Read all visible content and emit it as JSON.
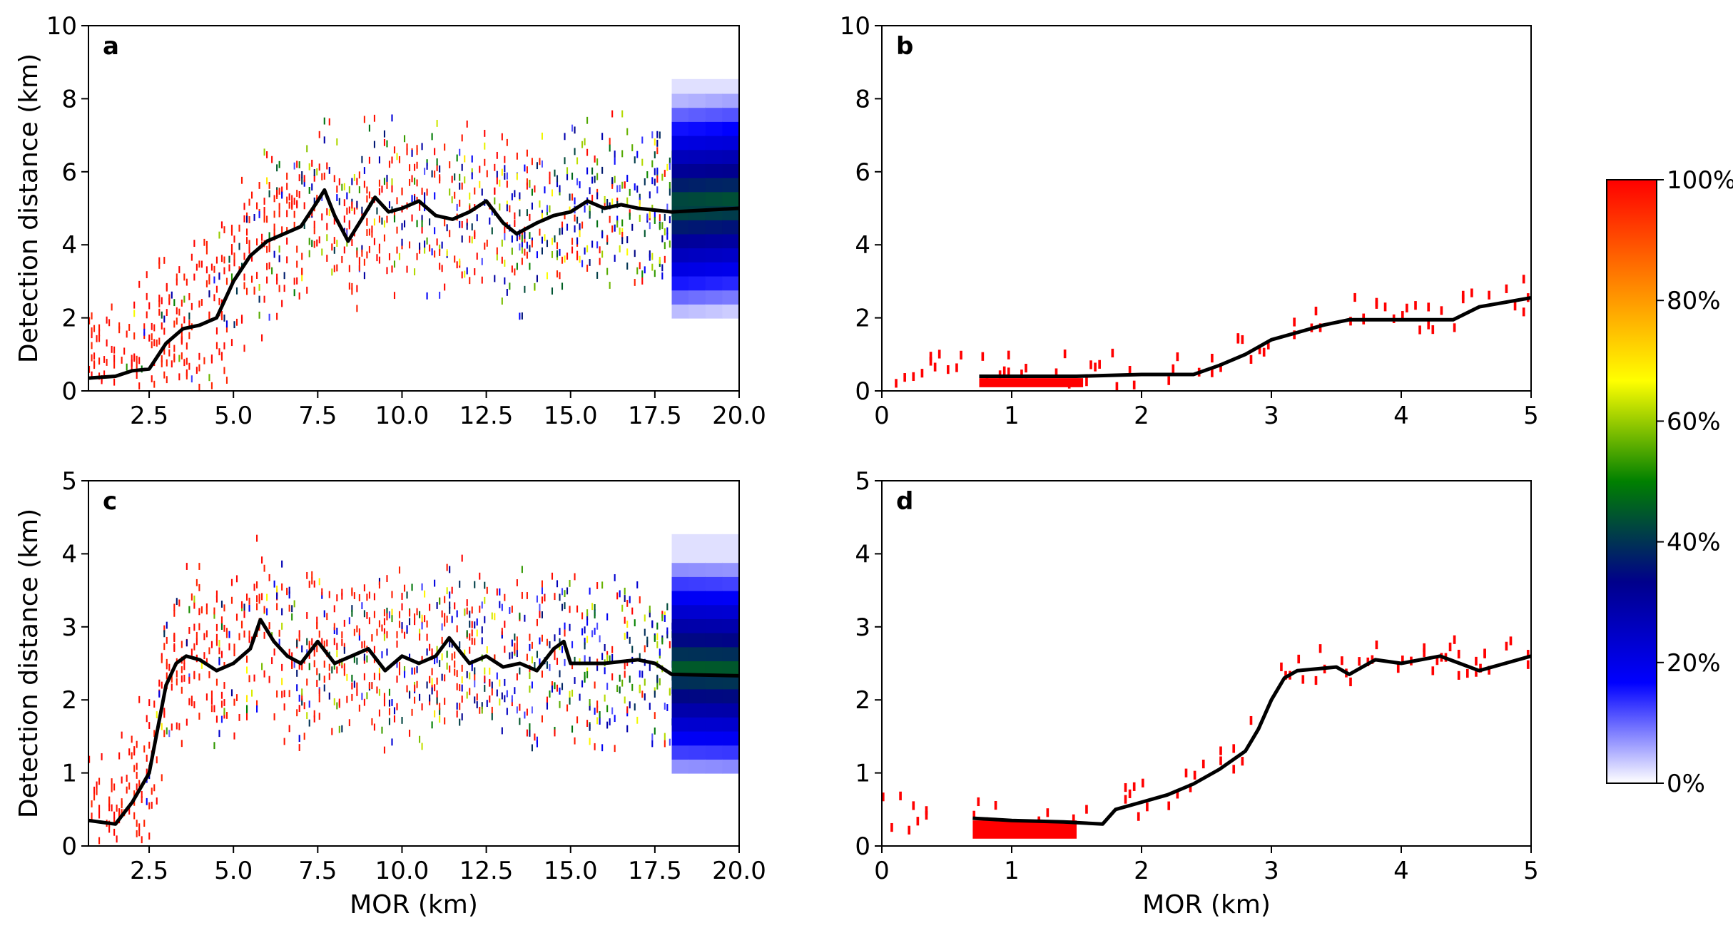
{
  "colorbar": {
    "stops": [
      "#ffffff",
      "#0000ff",
      "#00008b",
      "#008000",
      "#ffff00",
      "#ff8000",
      "#ff0000"
    ],
    "ticks": [
      {
        "value": 0,
        "label": "0%"
      },
      {
        "value": 20,
        "label": "20%"
      },
      {
        "value": 40,
        "label": "40%"
      },
      {
        "value": 60,
        "label": "60%"
      },
      {
        "value": 80,
        "label": "80%"
      },
      {
        "value": 100,
        "label": "100%"
      }
    ]
  },
  "chart_data": [
    {
      "panel": "a",
      "type": "heatmap",
      "xlabel": "",
      "ylabel": "Detection distance (km)",
      "xlim": [
        0.7,
        20.0
      ],
      "ylim": [
        0,
        10
      ],
      "xticks": [
        {
          "v": 2.5,
          "t": "2.5"
        },
        {
          "v": 5.0,
          "t": "5.0"
        },
        {
          "v": 7.5,
          "t": "7.5"
        },
        {
          "v": 10.0,
          "t": "10.0"
        },
        {
          "v": 12.5,
          "t": "12.5"
        },
        {
          "v": 15.0,
          "t": "15.0"
        },
        {
          "v": 17.5,
          "t": "17.5"
        },
        {
          "v": 20.0,
          "t": "20.0"
        }
      ],
      "yticks": [
        {
          "v": 0,
          "t": "0"
        },
        {
          "v": 2,
          "t": "2"
        },
        {
          "v": 4,
          "t": "4"
        },
        {
          "v": 6,
          "t": "6"
        },
        {
          "v": 8,
          "t": "8"
        },
        {
          "v": 10,
          "t": "10"
        }
      ],
      "median_line": [
        [
          0.7,
          0.35
        ],
        [
          1.5,
          0.4
        ],
        [
          2.0,
          0.55
        ],
        [
          2.5,
          0.6
        ],
        [
          3.0,
          1.3
        ],
        [
          3.5,
          1.7
        ],
        [
          4.0,
          1.8
        ],
        [
          4.5,
          2.0
        ],
        [
          5.0,
          3.0
        ],
        [
          5.5,
          3.7
        ],
        [
          6.0,
          4.1
        ],
        [
          6.5,
          4.3
        ],
        [
          7.0,
          4.5
        ],
        [
          7.5,
          5.2
        ],
        [
          7.7,
          5.5
        ],
        [
          8.0,
          4.8
        ],
        [
          8.4,
          4.1
        ],
        [
          8.8,
          4.7
        ],
        [
          9.2,
          5.3
        ],
        [
          9.6,
          4.9
        ],
        [
          10.0,
          5.0
        ],
        [
          10.5,
          5.2
        ],
        [
          11.0,
          4.8
        ],
        [
          11.5,
          4.7
        ],
        [
          12.0,
          4.9
        ],
        [
          12.5,
          5.2
        ],
        [
          13.0,
          4.6
        ],
        [
          13.4,
          4.3
        ],
        [
          14.0,
          4.6
        ],
        [
          14.5,
          4.8
        ],
        [
          15.0,
          4.9
        ],
        [
          15.5,
          5.2
        ],
        [
          16.0,
          5.0
        ],
        [
          16.5,
          5.1
        ],
        [
          17.0,
          5.0
        ],
        [
          18.0,
          4.9
        ],
        [
          20.0,
          5.0
        ]
      ]
    },
    {
      "panel": "b",
      "type": "heatmap",
      "xlabel": "",
      "ylabel": "",
      "xlim": [
        0,
        5
      ],
      "ylim": [
        0,
        10
      ],
      "xticks": [
        {
          "v": 0,
          "t": "0"
        },
        {
          "v": 1,
          "t": "1"
        },
        {
          "v": 2,
          "t": "2"
        },
        {
          "v": 3,
          "t": "3"
        },
        {
          "v": 4,
          "t": "4"
        },
        {
          "v": 5,
          "t": "5"
        }
      ],
      "yticks": [
        {
          "v": 0,
          "t": "0"
        },
        {
          "v": 2,
          "t": "2"
        },
        {
          "v": 4,
          "t": "4"
        },
        {
          "v": 6,
          "t": "6"
        },
        {
          "v": 8,
          "t": "8"
        },
        {
          "v": 10,
          "t": "10"
        }
      ],
      "median_line": [
        [
          0.75,
          0.4
        ],
        [
          1.5,
          0.4
        ],
        [
          2.0,
          0.45
        ],
        [
          2.4,
          0.45
        ],
        [
          2.6,
          0.7
        ],
        [
          2.8,
          1.0
        ],
        [
          3.0,
          1.4
        ],
        [
          3.2,
          1.6
        ],
        [
          3.4,
          1.8
        ],
        [
          3.6,
          1.95
        ],
        [
          4.0,
          1.95
        ],
        [
          4.4,
          1.95
        ],
        [
          4.6,
          2.3
        ],
        [
          5.0,
          2.55
        ]
      ]
    },
    {
      "panel": "c",
      "type": "heatmap",
      "xlabel": "MOR (km)",
      "ylabel": "Detection distance (km)",
      "xlim": [
        0.7,
        20.0
      ],
      "ylim": [
        0,
        5
      ],
      "xticks": [
        {
          "v": 2.5,
          "t": "2.5"
        },
        {
          "v": 5.0,
          "t": "5.0"
        },
        {
          "v": 7.5,
          "t": "7.5"
        },
        {
          "v": 10.0,
          "t": "10.0"
        },
        {
          "v": 12.5,
          "t": "12.5"
        },
        {
          "v": 15.0,
          "t": "15.0"
        },
        {
          "v": 17.5,
          "t": "17.5"
        },
        {
          "v": 20.0,
          "t": "20.0"
        }
      ],
      "yticks": [
        {
          "v": 0,
          "t": "0"
        },
        {
          "v": 1,
          "t": "1"
        },
        {
          "v": 2,
          "t": "2"
        },
        {
          "v": 3,
          "t": "3"
        },
        {
          "v": 4,
          "t": "4"
        },
        {
          "v": 5,
          "t": "5"
        }
      ],
      "median_line": [
        [
          0.7,
          0.35
        ],
        [
          1.5,
          0.3
        ],
        [
          2.0,
          0.6
        ],
        [
          2.5,
          1.0
        ],
        [
          3.0,
          2.2
        ],
        [
          3.3,
          2.5
        ],
        [
          3.6,
          2.6
        ],
        [
          4.0,
          2.55
        ],
        [
          4.5,
          2.4
        ],
        [
          5.0,
          2.5
        ],
        [
          5.5,
          2.7
        ],
        [
          5.8,
          3.1
        ],
        [
          6.2,
          2.8
        ],
        [
          6.6,
          2.6
        ],
        [
          7.0,
          2.5
        ],
        [
          7.5,
          2.8
        ],
        [
          8.0,
          2.5
        ],
        [
          8.5,
          2.6
        ],
        [
          9.0,
          2.7
        ],
        [
          9.5,
          2.4
        ],
        [
          10.0,
          2.6
        ],
        [
          10.5,
          2.5
        ],
        [
          11.0,
          2.6
        ],
        [
          11.4,
          2.85
        ],
        [
          12.0,
          2.5
        ],
        [
          12.5,
          2.6
        ],
        [
          13.0,
          2.45
        ],
        [
          13.5,
          2.5
        ],
        [
          14.0,
          2.4
        ],
        [
          14.5,
          2.7
        ],
        [
          14.8,
          2.8
        ],
        [
          15.0,
          2.5
        ],
        [
          16.0,
          2.5
        ],
        [
          17.0,
          2.55
        ],
        [
          17.5,
          2.5
        ],
        [
          18.0,
          2.35
        ],
        [
          20.0,
          2.33
        ]
      ]
    },
    {
      "panel": "d",
      "type": "heatmap",
      "xlabel": "MOR (km)",
      "ylabel": "",
      "xlim": [
        0,
        5
      ],
      "ylim": [
        0,
        5
      ],
      "xticks": [
        {
          "v": 0,
          "t": "0"
        },
        {
          "v": 1,
          "t": "1"
        },
        {
          "v": 2,
          "t": "2"
        },
        {
          "v": 3,
          "t": "3"
        },
        {
          "v": 4,
          "t": "4"
        },
        {
          "v": 5,
          "t": "5"
        }
      ],
      "yticks": [
        {
          "v": 0,
          "t": "0"
        },
        {
          "v": 1,
          "t": "1"
        },
        {
          "v": 2,
          "t": "2"
        },
        {
          "v": 3,
          "t": "3"
        },
        {
          "v": 4,
          "t": "4"
        },
        {
          "v": 5,
          "t": "5"
        }
      ],
      "median_line": [
        [
          0.7,
          0.38
        ],
        [
          1.0,
          0.35
        ],
        [
          1.4,
          0.33
        ],
        [
          1.7,
          0.3
        ],
        [
          1.8,
          0.5
        ],
        [
          2.0,
          0.6
        ],
        [
          2.2,
          0.7
        ],
        [
          2.4,
          0.85
        ],
        [
          2.6,
          1.05
        ],
        [
          2.8,
          1.3
        ],
        [
          2.9,
          1.6
        ],
        [
          3.0,
          2.0
        ],
        [
          3.1,
          2.3
        ],
        [
          3.2,
          2.4
        ],
        [
          3.5,
          2.45
        ],
        [
          3.6,
          2.35
        ],
        [
          3.8,
          2.55
        ],
        [
          4.0,
          2.5
        ],
        [
          4.3,
          2.6
        ],
        [
          4.6,
          2.4
        ],
        [
          4.8,
          2.5
        ],
        [
          5.0,
          2.6
        ]
      ]
    }
  ]
}
